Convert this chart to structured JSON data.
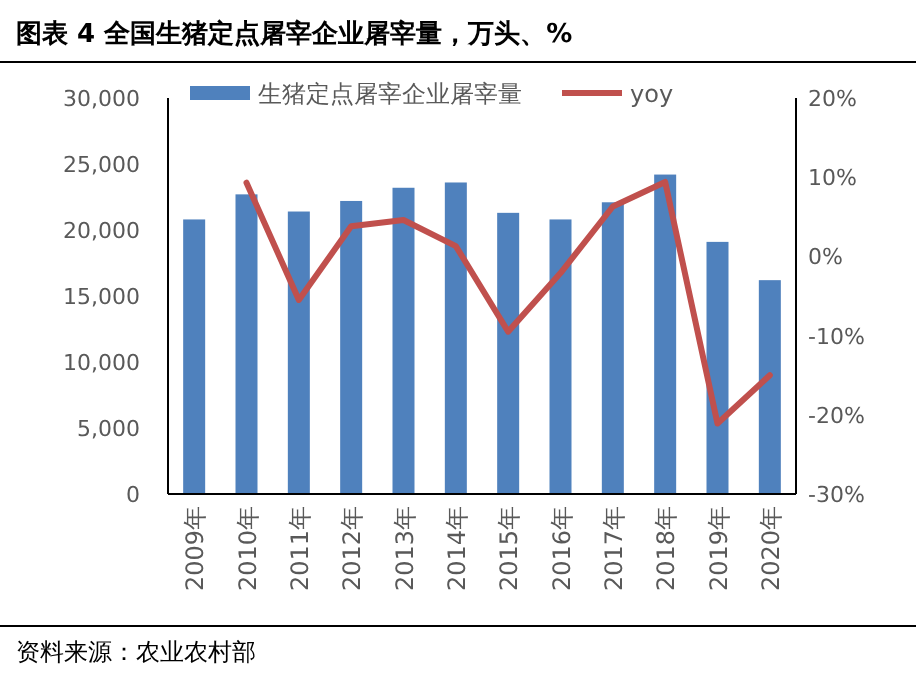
{
  "chart_data": {
    "type": "bar",
    "title": "图表 4 全国生猪定点屠宰企业屠宰量，万头、%",
    "categories": [
      "2009年",
      "2010年",
      "2011年",
      "2012年",
      "2013年",
      "2014年",
      "2015年",
      "2016年",
      "2017年",
      "2018年",
      "2019年",
      "2020年"
    ],
    "series": [
      {
        "name": "生猪定点屠宰企业屠宰量",
        "color": "#4f81bd",
        "values": [
          20800,
          22700,
          21400,
          22200,
          23200,
          23600,
          21300,
          20800,
          22100,
          24200,
          19100,
          16200
        ]
      },
      {
        "name": "yoy",
        "type": "line",
        "axis": "y2",
        "color": "#c0504d",
        "values": [
          null,
          9.3,
          -5.5,
          3.8,
          4.6,
          1.3,
          -9.5,
          -2.1,
          6.3,
          9.4,
          -21.1,
          -15.0
        ]
      }
    ],
    "ylim": [
      0,
      30000
    ],
    "yticks": [
      {
        "value": 0,
        "label": "0"
      },
      {
        "value": 5000,
        "label": "5,000"
      },
      {
        "value": 10000,
        "label": "10,000"
      },
      {
        "value": 15000,
        "label": "15,000"
      },
      {
        "value": 20000,
        "label": "20,000"
      },
      {
        "value": 25000,
        "label": "25,000"
      },
      {
        "value": 30000,
        "label": "30,000"
      }
    ],
    "y2lim": [
      -30,
      20
    ],
    "y2ticks": [
      {
        "value": -30,
        "label": "-30%"
      },
      {
        "value": -20,
        "label": "-20%"
      },
      {
        "value": -10,
        "label": "-10%"
      },
      {
        "value": 0,
        "label": "0%"
      },
      {
        "value": 10,
        "label": "10%"
      },
      {
        "value": 20,
        "label": "20%"
      }
    ],
    "legend": "top",
    "annotations": [
      "资料来源：农业农村部"
    ]
  }
}
